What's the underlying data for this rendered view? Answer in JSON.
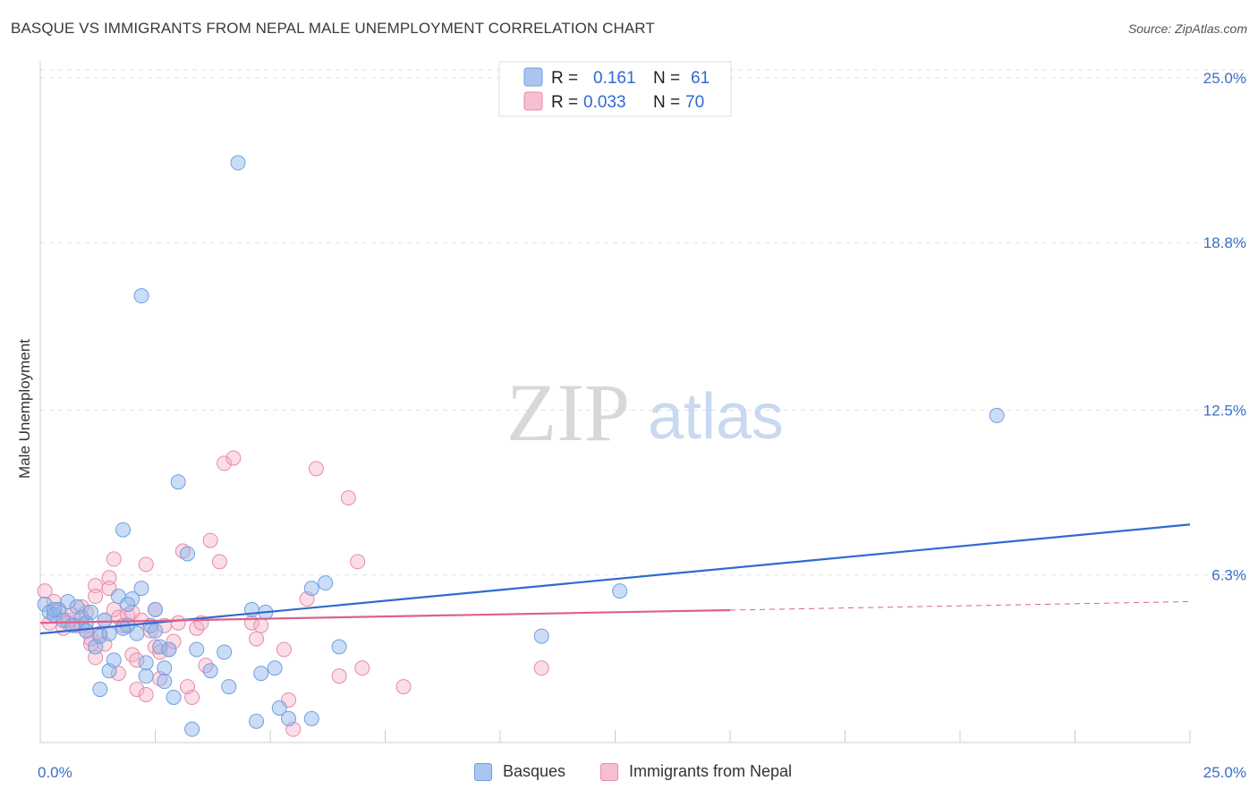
{
  "header": {
    "title": "BASQUE VS IMMIGRANTS FROM NEPAL MALE UNEMPLOYMENT CORRELATION CHART",
    "source": "Source: ZipAtlas.com"
  },
  "watermark": {
    "zip": "ZIP",
    "atlas": "atlas"
  },
  "legend": {
    "r_label": "R =",
    "n_label": "N =",
    "series": [
      {
        "name": "Basques",
        "r": "0.161",
        "n": "61",
        "color": "#6f9fe0",
        "fill": "#a9c6f0"
      },
      {
        "name": "Immigrants from Nepal",
        "r": "0.033",
        "n": "70",
        "color": "#e88aa8",
        "fill": "#f6bfd0"
      }
    ]
  },
  "chart_data": {
    "type": "scatter",
    "title": "BASQUE VS IMMIGRANTS FROM NEPAL MALE UNEMPLOYMENT CORRELATION CHART",
    "xlabel": "",
    "ylabel": "Male Unemployment",
    "xlim": [
      0,
      25
    ],
    "ylim": [
      0,
      25.3
    ],
    "x_tick_labels": [
      "0.0%",
      "25.0%"
    ],
    "y_ticks": [
      6.3,
      12.5,
      18.8,
      25.0
    ],
    "y_tick_labels": [
      "6.3%",
      "12.5%",
      "18.8%",
      "25.0%"
    ],
    "grid": true,
    "series": [
      {
        "name": "Basques",
        "color": "#6f9fe0",
        "trend": {
          "x": [
            0,
            25
          ],
          "y": [
            4.1,
            8.2
          ],
          "dashed_from": null
        },
        "points": [
          [
            0.1,
            5.2
          ],
          [
            0.2,
            4.9
          ],
          [
            0.3,
            4.8
          ],
          [
            0.4,
            5.0
          ],
          [
            0.5,
            4.6
          ],
          [
            0.6,
            5.3
          ],
          [
            0.7,
            4.4
          ],
          [
            0.8,
            5.1
          ],
          [
            0.9,
            4.7
          ],
          [
            1.0,
            4.5
          ],
          [
            1.0,
            4.2
          ],
          [
            1.1,
            4.9
          ],
          [
            1.2,
            3.6
          ],
          [
            1.3,
            4.0
          ],
          [
            1.4,
            4.6
          ],
          [
            1.5,
            2.7
          ],
          [
            1.5,
            4.1
          ],
          [
            1.6,
            3.1
          ],
          [
            1.7,
            5.5
          ],
          [
            1.8,
            4.3
          ],
          [
            1.8,
            8.0
          ],
          [
            1.9,
            4.4
          ],
          [
            2.0,
            5.4
          ],
          [
            2.1,
            4.1
          ],
          [
            2.2,
            5.8
          ],
          [
            2.2,
            16.8
          ],
          [
            2.3,
            3.0
          ],
          [
            2.3,
            2.5
          ],
          [
            2.4,
            4.4
          ],
          [
            2.5,
            5.0
          ],
          [
            2.5,
            4.2
          ],
          [
            2.6,
            3.6
          ],
          [
            2.7,
            2.8
          ],
          [
            2.7,
            2.3
          ],
          [
            2.8,
            3.5
          ],
          [
            2.9,
            1.7
          ],
          [
            3.0,
            9.8
          ],
          [
            3.2,
            7.1
          ],
          [
            3.3,
            0.5
          ],
          [
            3.4,
            3.5
          ],
          [
            3.7,
            2.7
          ],
          [
            4.0,
            3.4
          ],
          [
            4.1,
            2.1
          ],
          [
            4.3,
            21.8
          ],
          [
            4.6,
            5.0
          ],
          [
            4.7,
            0.8
          ],
          [
            4.8,
            2.6
          ],
          [
            4.9,
            4.9
          ],
          [
            5.1,
            2.8
          ],
          [
            5.2,
            1.3
          ],
          [
            5.4,
            0.9
          ],
          [
            5.9,
            0.9
          ],
          [
            5.9,
            5.8
          ],
          [
            6.2,
            6.0
          ],
          [
            6.5,
            3.6
          ],
          [
            10.9,
            4.0
          ],
          [
            12.6,
            5.7
          ],
          [
            20.8,
            12.3
          ],
          [
            1.3,
            2.0
          ],
          [
            0.3,
            5.0
          ],
          [
            1.9,
            5.2
          ]
        ]
      },
      {
        "name": "Immigrants from Nepal",
        "color": "#e88aa8",
        "trend": {
          "x": [
            0,
            25
          ],
          "y": [
            4.5,
            5.3
          ],
          "dashed_from": 15
        },
        "points": [
          [
            0.1,
            5.7
          ],
          [
            0.2,
            4.5
          ],
          [
            0.3,
            4.8
          ],
          [
            0.4,
            5.0
          ],
          [
            0.5,
            4.3
          ],
          [
            0.6,
            4.6
          ],
          [
            0.7,
            4.8
          ],
          [
            0.8,
            4.4
          ],
          [
            0.9,
            5.1
          ],
          [
            1.0,
            4.2
          ],
          [
            1.0,
            4.9
          ],
          [
            1.1,
            3.7
          ],
          [
            1.1,
            3.9
          ],
          [
            1.2,
            5.9
          ],
          [
            1.2,
            5.5
          ],
          [
            1.3,
            4.1
          ],
          [
            1.4,
            4.6
          ],
          [
            1.5,
            6.2
          ],
          [
            1.5,
            5.8
          ],
          [
            1.6,
            5.0
          ],
          [
            1.6,
            6.9
          ],
          [
            1.7,
            4.7
          ],
          [
            1.8,
            4.4
          ],
          [
            1.9,
            4.8
          ],
          [
            2.0,
            3.3
          ],
          [
            2.1,
            3.1
          ],
          [
            2.1,
            2.0
          ],
          [
            2.2,
            4.6
          ],
          [
            2.3,
            6.7
          ],
          [
            2.3,
            1.8
          ],
          [
            2.4,
            4.2
          ],
          [
            2.5,
            3.6
          ],
          [
            2.6,
            3.4
          ],
          [
            2.6,
            2.4
          ],
          [
            2.7,
            4.4
          ],
          [
            2.8,
            3.5
          ],
          [
            3.0,
            4.5
          ],
          [
            3.1,
            7.2
          ],
          [
            3.2,
            2.1
          ],
          [
            3.3,
            1.7
          ],
          [
            3.4,
            4.3
          ],
          [
            3.5,
            4.5
          ],
          [
            3.7,
            7.6
          ],
          [
            3.9,
            6.8
          ],
          [
            4.0,
            10.5
          ],
          [
            4.2,
            10.7
          ],
          [
            4.6,
            4.5
          ],
          [
            4.7,
            3.9
          ],
          [
            4.8,
            4.4
          ],
          [
            5.3,
            3.5
          ],
          [
            5.4,
            1.6
          ],
          [
            5.5,
            0.5
          ],
          [
            5.8,
            5.4
          ],
          [
            6.0,
            10.3
          ],
          [
            6.5,
            2.5
          ],
          [
            6.7,
            9.2
          ],
          [
            6.9,
            6.8
          ],
          [
            7.0,
            2.8
          ],
          [
            7.9,
            2.1
          ],
          [
            10.9,
            2.8
          ],
          [
            0.3,
            5.3
          ],
          [
            0.6,
            4.5
          ],
          [
            0.9,
            4.4
          ],
          [
            1.2,
            3.2
          ],
          [
            1.4,
            3.7
          ],
          [
            1.7,
            2.6
          ],
          [
            2.0,
            4.9
          ],
          [
            2.5,
            5.0
          ],
          [
            2.9,
            3.8
          ],
          [
            3.6,
            2.9
          ]
        ]
      }
    ]
  }
}
